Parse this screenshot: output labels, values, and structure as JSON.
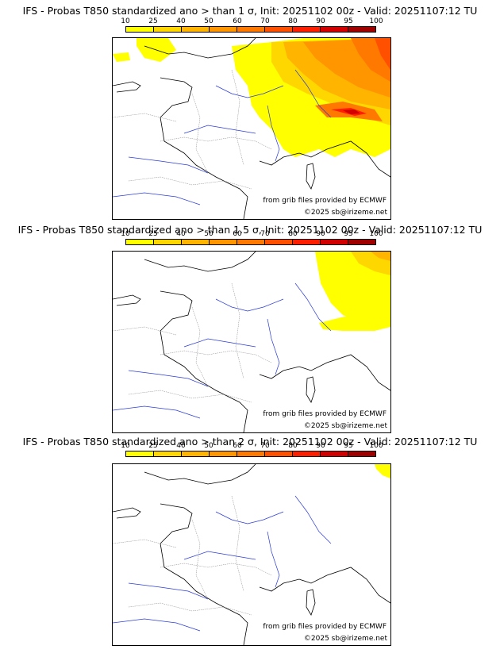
{
  "legend": {
    "ticks": [
      "10",
      "25",
      "40",
      "50",
      "60",
      "70",
      "80",
      "90",
      "95",
      "100"
    ],
    "colors": [
      "#ffff00",
      "#ffd700",
      "#ffb400",
      "#ff9600",
      "#ff7800",
      "#ff5000",
      "#ff1e00",
      "#d20000",
      "#a00000",
      "#640000"
    ]
  },
  "panels": [
    {
      "title": "IFS - Probas T850  standardized ano > than 1 σ, Init: 20251102 00z - Valid: 20251107:12 TU",
      "credit_source": "from grib files provided by ECMWF",
      "credit_copyright": "©2025 sb@irizeme.net"
    },
    {
      "title": "IFS - Probas T850  standardized ano > than 1.5 σ, Init: 20251102 00z - Valid: 20251107:12 TU",
      "credit_source": "from grib files provided by ECMWF",
      "credit_copyright": "©2025 sb@irizeme.net"
    },
    {
      "title": "IFS - Probas T850  standardized ano > than 2 σ, Init: 20251102 00z - Valid: 20251107:12 TU",
      "credit_source": "from grib files provided by ECMWF",
      "credit_copyright": "©2025 sb@irizeme.net"
    }
  ]
}
